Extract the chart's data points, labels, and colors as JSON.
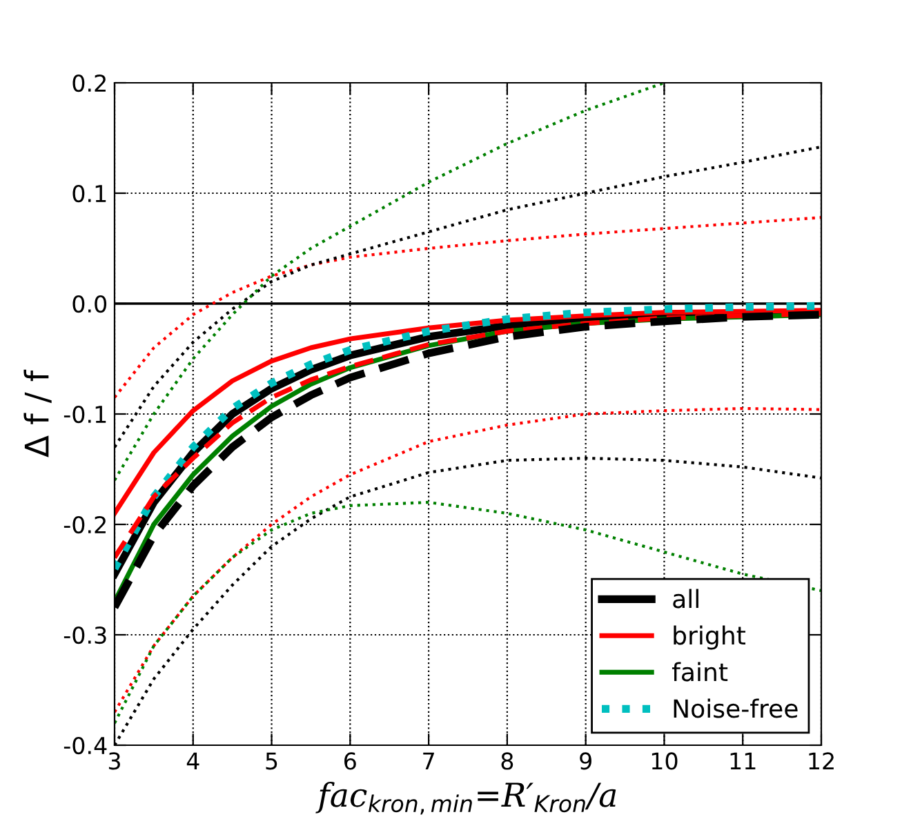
{
  "chart_data": {
    "type": "line",
    "xlabel": "fac$_{kron,min}$=R′$_{Kron}$/a",
    "ylabel": "Δ f / f",
    "x": [
      3,
      3.5,
      4,
      4.5,
      5,
      5.5,
      6,
      7,
      8,
      9,
      10,
      11,
      12
    ],
    "xlim": [
      3,
      12
    ],
    "xticks": [
      3,
      4,
      5,
      6,
      7,
      8,
      9,
      10,
      11,
      12
    ],
    "ylim": [
      -0.4,
      0.2
    ],
    "yticks": [
      {
        "value": -0.4,
        "label": "-0.4"
      },
      {
        "value": -0.3,
        "label": "-0.3"
      },
      {
        "value": -0.2,
        "label": "-0.2"
      },
      {
        "value": -0.1,
        "label": "-0.1"
      },
      {
        "value": 0,
        "label": "0.0"
      },
      {
        "value": 0.1,
        "label": "0.1"
      },
      {
        "value": 0.2,
        "label": "0.2"
      }
    ],
    "grid": true,
    "legend": "bottom right",
    "marker": "none",
    "ref_lines": [
      {
        "axis": "y",
        "value": 0,
        "color": "#000000",
        "line_style": "solid"
      }
    ],
    "series": [
      {
        "name": "all",
        "color": "#000000",
        "line_style": "solid",
        "values": [
          -0.245,
          -0.18,
          -0.135,
          -0.1,
          -0.077,
          -0.06,
          -0.047,
          -0.03,
          -0.02,
          -0.014,
          -0.011,
          -0.009,
          -0.008
        ]
      },
      {
        "name": "bright",
        "color": "#ff0000",
        "line_style": "solid",
        "values": [
          -0.19,
          -0.135,
          -0.097,
          -0.07,
          -0.052,
          -0.04,
          -0.032,
          -0.022,
          -0.015,
          -0.011,
          -0.008,
          -0.007,
          -0.006
        ]
      },
      {
        "name": "faint",
        "color": "#008000",
        "line_style": "solid",
        "values": [
          -0.27,
          -0.2,
          -0.155,
          -0.12,
          -0.093,
          -0.073,
          -0.058,
          -0.038,
          -0.025,
          -0.018,
          -0.014,
          -0.012,
          -0.01
        ]
      },
      {
        "name": "Noise-free",
        "color": "#00bfbf",
        "line_style": "dotted",
        "values": [
          -0.24,
          -0.175,
          -0.13,
          -0.095,
          -0.072,
          -0.055,
          -0.042,
          -0.025,
          -0.014,
          -0.008,
          -0.005,
          -0.003,
          -0.002
        ]
      },
      {
        "color": "#ff0000",
        "line_style": "dashed",
        "values": [
          -0.23,
          -0.175,
          -0.14,
          -0.108,
          -0.085,
          -0.069,
          -0.057,
          -0.037,
          -0.025,
          -0.018,
          -0.013,
          -0.011,
          -0.009
        ]
      },
      {
        "color": "#000000",
        "line_style": "dashed",
        "values": [
          -0.275,
          -0.21,
          -0.165,
          -0.13,
          -0.103,
          -0.083,
          -0.067,
          -0.045,
          -0.03,
          -0.021,
          -0.016,
          -0.012,
          -0.01
        ]
      },
      {
        "color": "#ff0000",
        "line_style": "dotted",
        "values": [
          -0.085,
          -0.04,
          -0.01,
          0.01,
          0.025,
          0.035,
          0.042,
          0.05,
          0.057,
          0.063,
          0.068,
          0.073,
          0.078
        ]
      },
      {
        "color": "#000000",
        "line_style": "dotted",
        "values": [
          -0.13,
          -0.075,
          -0.035,
          -0.005,
          0.02,
          0.035,
          0.045,
          0.065,
          0.085,
          0.1,
          0.115,
          0.128,
          0.142
        ]
      },
      {
        "color": "#008000",
        "line_style": "dotted",
        "values": [
          -0.16,
          -0.1,
          -0.05,
          -0.01,
          0.025,
          0.05,
          0.07,
          0.11,
          0.145,
          0.175,
          0.2,
          null,
          null
        ]
      },
      {
        "color": "#ff0000",
        "line_style": "dotted",
        "values": [
          -0.37,
          -0.31,
          -0.265,
          -0.23,
          -0.2,
          -0.175,
          -0.155,
          -0.125,
          -0.11,
          -0.1,
          -0.097,
          -0.095,
          -0.096
        ]
      },
      {
        "color": "#000000",
        "line_style": "dotted",
        "values": [
          -0.4,
          -0.34,
          -0.295,
          -0.255,
          -0.22,
          -0.195,
          -0.175,
          -0.153,
          -0.142,
          -0.14,
          -0.142,
          -0.148,
          -0.158
        ]
      },
      {
        "color": "#008000",
        "line_style": "dotted",
        "values": [
          -0.38,
          -0.31,
          -0.265,
          -0.23,
          -0.205,
          -0.19,
          -0.183,
          -0.18,
          -0.19,
          -0.205,
          -0.225,
          -0.245,
          -0.26
        ]
      }
    ]
  }
}
